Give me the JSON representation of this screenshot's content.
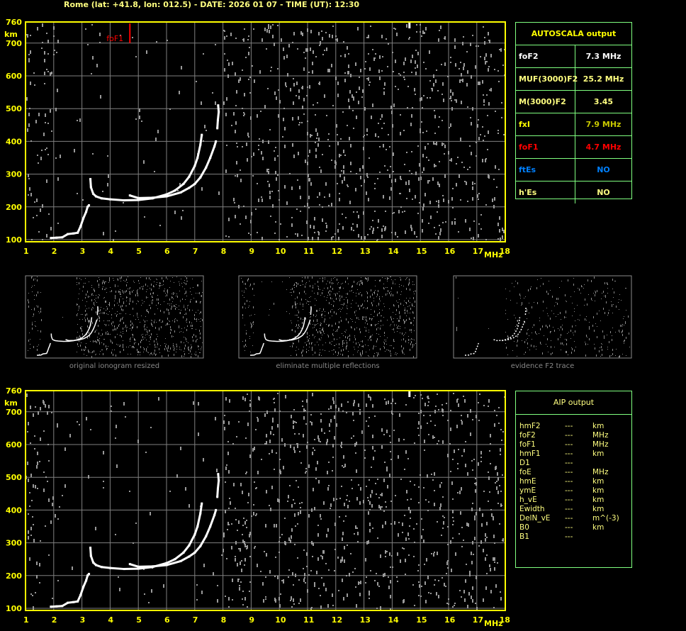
{
  "title": "Rome (lat: +41.8, lon: 012.5) - DATE: 2026 01 07 - TIME (UT): 12:30",
  "colors": {
    "axis": "#ffff00",
    "grid": "#808080",
    "trace": "#ffffff",
    "foF1_marker": "#ff0000",
    "table_border": "#80ff80",
    "ftEs": "#0080ff"
  },
  "autoscala": {
    "header": "AUTOSCALA output",
    "rows": [
      {
        "label": "foF2",
        "value": "7.3 MHz",
        "color": "#ffffff",
        "label_color": "#ffffff"
      },
      {
        "label": "MUF(3000)F2",
        "value": "25.2 MHz",
        "color": "#ffff80",
        "label_color": "#ffff80"
      },
      {
        "label": "M(3000)F2",
        "value": "3.45",
        "color": "#ffff80",
        "label_color": "#ffff80"
      },
      {
        "label": "fxI",
        "value": "7.9 MHz",
        "color": "#c8c800",
        "label_color": "#ffff00"
      },
      {
        "label": "foF1",
        "value": "4.7 MHz",
        "color": "#ff0000",
        "label_color": "#ff0000"
      },
      {
        "label": "ftEs",
        "value": "NO",
        "color": "#0080ff",
        "label_color": "#0080ff"
      },
      {
        "label": "h'Es",
        "value": "NO",
        "color": "#ffff80",
        "label_color": "#ffff80"
      }
    ]
  },
  "aip": {
    "header": "AIP output",
    "rows": [
      [
        "hmF2",
        "---",
        "km"
      ],
      [
        "foF2",
        "---",
        "MHz"
      ],
      [
        "foF1",
        "---",
        "MHz"
      ],
      [
        "hmF1",
        "---",
        "km"
      ],
      [
        "D1",
        "---",
        ""
      ],
      [
        "foE",
        "---",
        "MHz"
      ],
      [
        "hmE",
        "---",
        "km"
      ],
      [
        "ymE",
        "---",
        "km"
      ],
      [
        "h_vE",
        "---",
        "km"
      ],
      [
        "Ewidth",
        "---",
        "km"
      ],
      [
        "DelN_vE",
        "---",
        "m^(-3)"
      ],
      [
        "B0",
        "---",
        "km"
      ],
      [
        "B1",
        "---",
        ""
      ]
    ]
  },
  "captions": [
    "original ionogram resized",
    "eliminate multiple reflections",
    "evidence F2 trace"
  ],
  "chart_data": [
    {
      "type": "scatter",
      "xlabel": "MHz",
      "ylabel": "km",
      "xlim": [
        1,
        18
      ],
      "ylim": [
        100,
        760
      ],
      "xticks": [
        "1",
        "2",
        "3",
        "4",
        "5",
        "6",
        "7",
        "8",
        "9",
        "10",
        "11",
        "12",
        "13",
        "14",
        "15",
        "16",
        "17",
        "18"
      ],
      "yticks": [
        "100",
        "200",
        "300",
        "400",
        "500",
        "600",
        "700",
        "760"
      ],
      "grid": true,
      "annotation": {
        "label": "foF1",
        "x": 4.7,
        "y": [
          700,
          760
        ]
      },
      "series": [
        {
          "points": [
            [
              1.9,
              105
            ],
            [
              2.1,
              106
            ],
            [
              2.3,
              107
            ],
            [
              2.5,
              117
            ],
            [
              2.7,
              119
            ],
            [
              2.85,
              121
            ],
            [
              2.95,
              140
            ],
            [
              3.05,
              165
            ],
            [
              3.15,
              185
            ],
            [
              3.2,
              200
            ],
            [
              3.25,
              205
            ]
          ]
        },
        {
          "points": [
            [
              3.3,
              285
            ],
            [
              3.32,
              260
            ],
            [
              3.4,
              240
            ],
            [
              3.5,
              232
            ],
            [
              3.7,
              226
            ],
            [
              4,
              223
            ],
            [
              4.5,
              220
            ],
            [
              5,
              221
            ],
            [
              5.5,
              226
            ],
            [
              6,
              238
            ],
            [
              6.3,
              250
            ],
            [
              6.6,
              270
            ],
            [
              6.8,
              292
            ],
            [
              7,
              325
            ],
            [
              7.1,
              350
            ],
            [
              7.2,
              390
            ],
            [
              7.25,
              420
            ]
          ]
        },
        {
          "points": [
            [
              4.7,
              235
            ],
            [
              5,
              227
            ],
            [
              5.5,
              228
            ],
            [
              6,
              232
            ],
            [
              6.5,
              244
            ],
            [
              6.8,
              258
            ],
            [
              7,
              270
            ],
            [
              7.2,
              290
            ],
            [
              7.4,
              320
            ],
            [
              7.55,
              350
            ],
            [
              7.7,
              385
            ],
            [
              7.75,
              400
            ]
          ]
        },
        {
          "points": [
            [
              7.8,
              440
            ],
            [
              7.82,
              465
            ],
            [
              7.85,
              490
            ],
            [
              7.83,
              510
            ]
          ]
        }
      ]
    },
    {
      "type": "scatter",
      "xlabel": "MHz",
      "ylabel": "km",
      "xlim": [
        1,
        18
      ],
      "ylim": [
        100,
        760
      ],
      "xticks": [
        "1",
        "2",
        "3",
        "4",
        "5",
        "6",
        "7",
        "8",
        "9",
        "10",
        "11",
        "12",
        "13",
        "14",
        "15",
        "16",
        "17",
        "18"
      ],
      "yticks": [
        "100",
        "200",
        "300",
        "400",
        "500",
        "600",
        "700",
        "760"
      ],
      "grid": true
    }
  ]
}
